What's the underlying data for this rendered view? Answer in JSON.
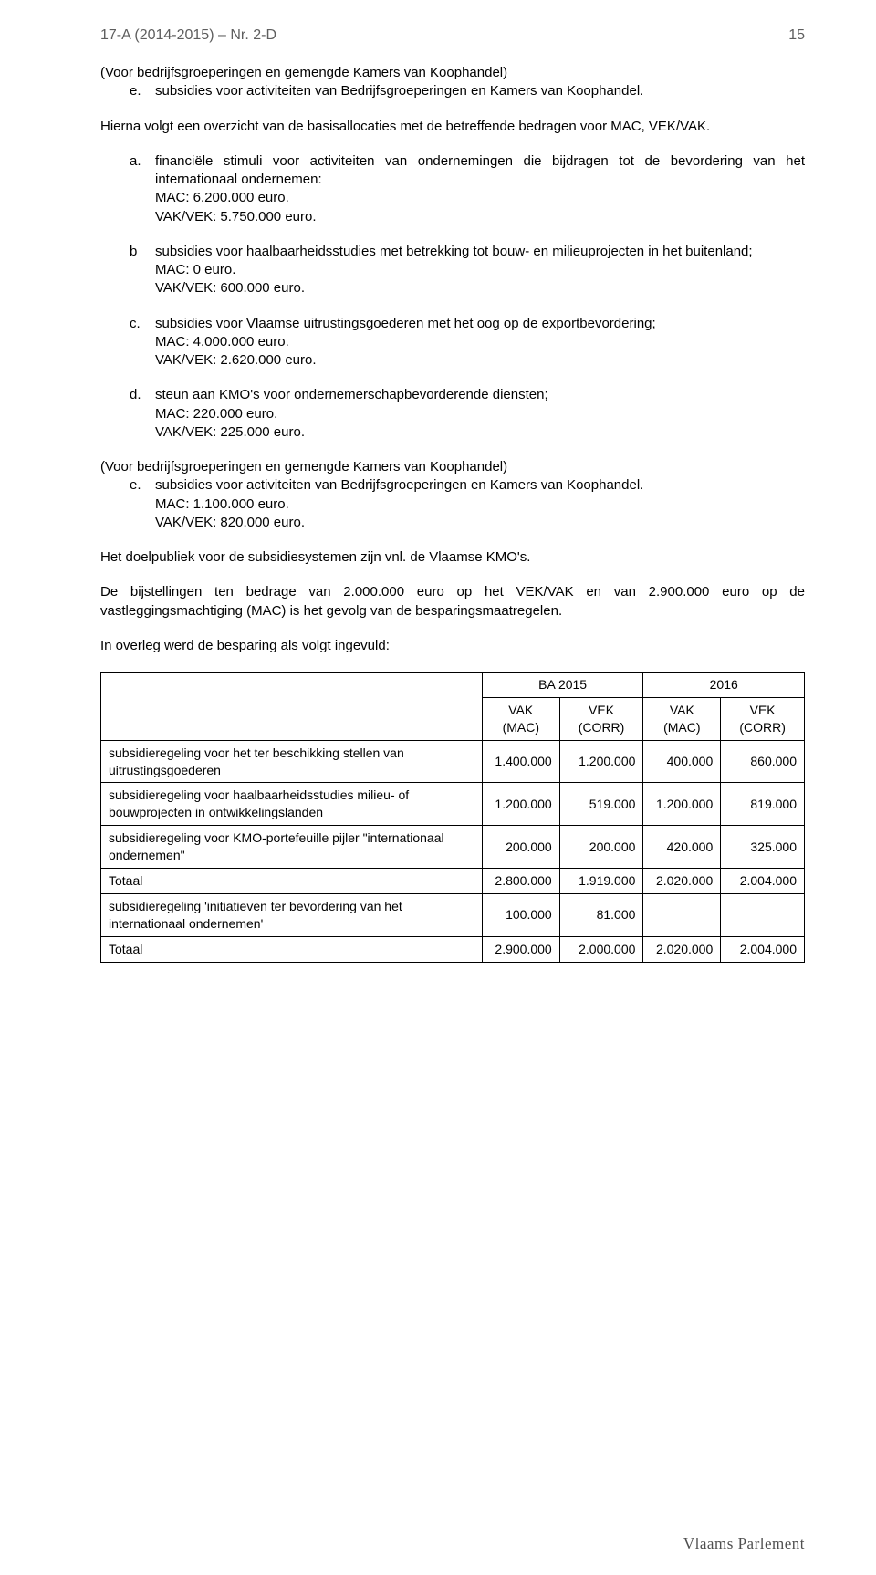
{
  "header": {
    "doc_ref": "17-A (2014-2015) – Nr. 2-D",
    "page_number": "15"
  },
  "p1_lead": "(Voor bedrijfsgroeperingen en gemengde Kamers van Koophandel)",
  "p1_e_marker": "e.",
  "p1_e_text": "subsidies voor activiteiten van Bedrijfsgroeperingen en Kamers van Koophandel.",
  "p2": "Hierna volgt een overzicht van de basisallocaties met de betreffende bedragen voor MAC, VEK/VAK.",
  "items": {
    "a": {
      "marker": "a.",
      "text": "financiële stimuli voor activiteiten van ondernemingen die bijdragen tot de bevordering van het internationaal ondernemen:",
      "l1": "MAC: 6.200.000 euro.",
      "l2": "VAK/VEK: 5.750.000 euro."
    },
    "b": {
      "marker": "b",
      "text": "subsidies voor haalbaarheidsstudies met betrekking tot bouw- en milieuprojecten in het buitenland;",
      "l1": "MAC: 0 euro.",
      "l2": "VAK/VEK: 600.000 euro."
    },
    "c": {
      "marker": "c.",
      "text": "subsidies voor Vlaamse uitrustingsgoederen met het oog op de exportbevordering;",
      "l1": "MAC: 4.000.000 euro.",
      "l2": "VAK/VEK: 2.620.000 euro."
    },
    "d": {
      "marker": "d.",
      "text": "steun aan KMO's voor ondernemerschapbevorderende diensten;",
      "l1": "MAC: 220.000 euro.",
      "l2": "VAK/VEK: 225.000 euro."
    },
    "e": {
      "lead": "(Voor bedrijfsgroeperingen en gemengde Kamers van Koophandel)",
      "marker": "e.",
      "text": "subsidies voor activiteiten van Bedrijfsgroeperingen en Kamers van Koophandel.",
      "l1": "MAC: 1.100.000 euro.",
      "l2": "VAK/VEK: 820.000 euro."
    }
  },
  "p3": "Het doelpubliek voor de subsidiesystemen zijn vnl. de Vlaamse KMO's.",
  "p4": "De bijstellingen ten bedrage van 2.000.000 euro op het VEK/VAK en van 2.900.000 euro op de vastleggingsmachtiging (MAC) is het gevolg van de besparingsmaatregelen.",
  "p5": "In overleg werd de besparing als volgt ingevuld:",
  "table": {
    "type": "table",
    "columns_group1": "BA 2015",
    "columns_group2": "2016",
    "subheaders": {
      "vak_mac": "VAK (MAC)",
      "vek_corr": "VEK (CORR)",
      "vak_mac2": "VAK (MAC)",
      "vek_corr2": "VEK (CORR)"
    },
    "rows": [
      {
        "label": "subsidieregeling voor het ter beschikking stellen van uitrustingsgoederen",
        "c1": "1.400.000",
        "c2": "1.200.000",
        "c3": "400.000",
        "c4": "860.000"
      },
      {
        "label": "subsidieregeling voor haalbaarheidsstudies milieu- of bouwprojecten in ontwikkelingslanden",
        "c1": "1.200.000",
        "c2": "519.000",
        "c3": "1.200.000",
        "c4": "819.000"
      },
      {
        "label": "subsidieregeling voor KMO-portefeuille pijler \"internationaal ondernemen\"",
        "c1": "200.000",
        "c2": "200.000",
        "c3": "420.000",
        "c4": "325.000"
      },
      {
        "label": "Totaal",
        "c1": "2.800.000",
        "c2": "1.919.000",
        "c3": "2.020.000",
        "c4": "2.004.000"
      },
      {
        "label": "subsidieregeling 'initiatieven ter bevordering van het internationaal ondernemen'",
        "c1": "100.000",
        "c2": "81.000",
        "c3": "",
        "c4": ""
      },
      {
        "label": "Totaal",
        "c1": "2.900.000",
        "c2": "2.000.000",
        "c3": "2.020.000",
        "c4": "2.004.000"
      }
    ],
    "border_color": "#000000",
    "background_color": "#ffffff",
    "font_size_pt": 10
  },
  "footer": "Vlaams Parlement",
  "colors": {
    "text": "#000000",
    "header": "#5e5e5e",
    "footer": "#4f4f4f",
    "background": "#ffffff"
  }
}
